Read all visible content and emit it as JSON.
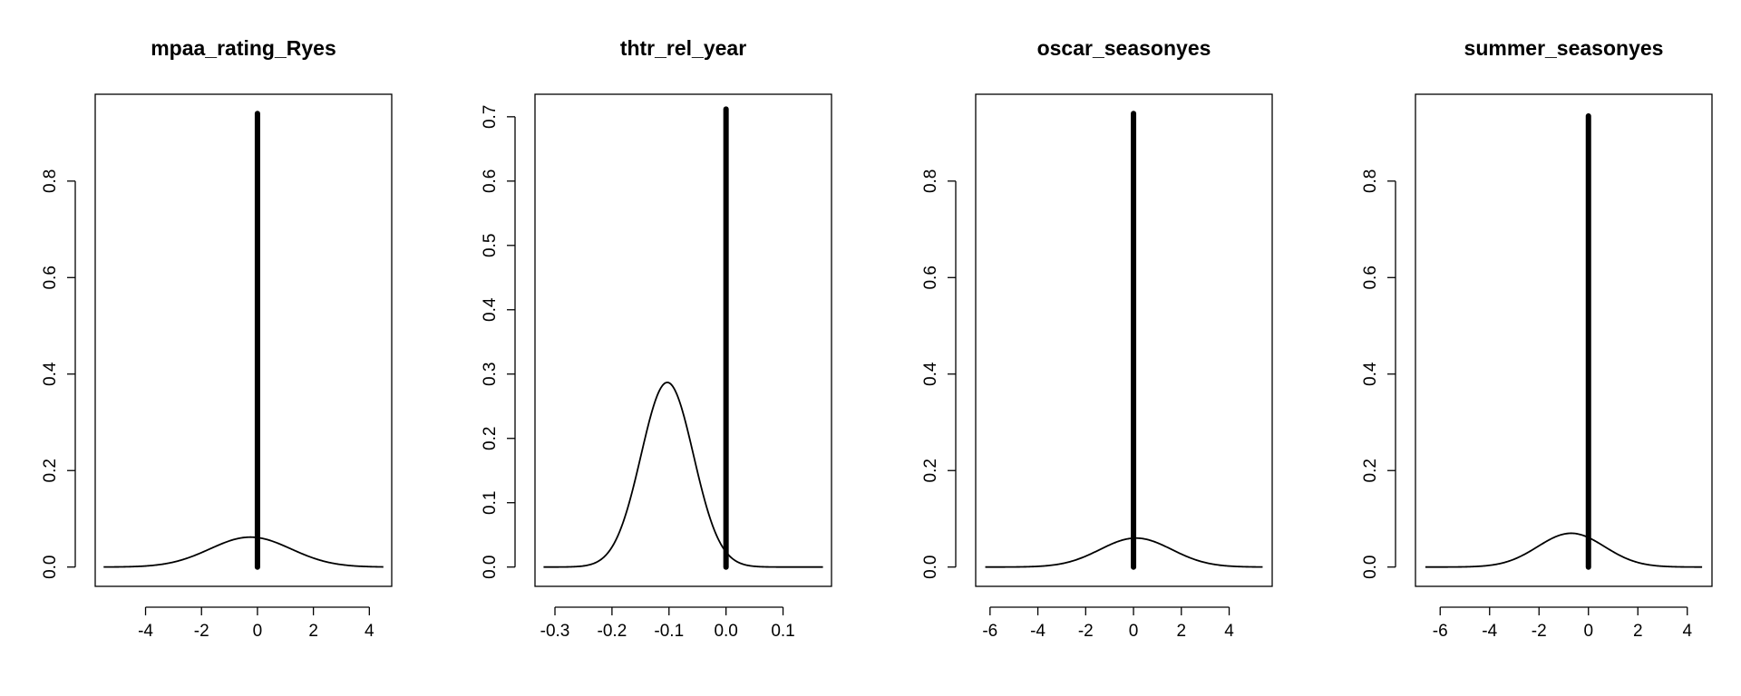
{
  "chart_data": [
    {
      "type": "line",
      "title": "mpaa_rating_Ryes",
      "xlabel": "",
      "ylabel": "",
      "xlim": [
        -5.8,
        4.8
      ],
      "ylim": [
        -0.04,
        0.98
      ],
      "x_ticks": [
        -4,
        -2,
        0,
        2,
        4
      ],
      "y_ticks": [
        0.0,
        0.2,
        0.4,
        0.6,
        0.8
      ],
      "x_tick_labels": [
        "-4",
        "-2",
        "0",
        "2",
        "4"
      ],
      "y_tick_labels": [
        "0.0",
        "0.2",
        "0.4",
        "0.6",
        "0.8"
      ],
      "density": {
        "mean": -0.25,
        "sd": 1.45,
        "peak": 0.062,
        "x_range": [
          -5.5,
          4.5
        ]
      },
      "spike": {
        "x": 0.0,
        "height": 0.94
      }
    },
    {
      "type": "line",
      "title": "thtr_rel_year",
      "xlabel": "",
      "ylabel": "",
      "xlim": [
        -0.335,
        0.185
      ],
      "ylim": [
        -0.03,
        0.735
      ],
      "x_ticks": [
        -0.3,
        -0.2,
        -0.1,
        0.0,
        0.1
      ],
      "y_ticks": [
        0.0,
        0.1,
        0.2,
        0.3,
        0.4,
        0.5,
        0.6,
        0.7
      ],
      "x_tick_labels": [
        "-0.3",
        "-0.2",
        "-0.1",
        "0.0",
        "0.1"
      ],
      "y_tick_labels": [
        "0.0",
        "0.1",
        "0.2",
        "0.3",
        "0.4",
        "0.5",
        "0.6",
        "0.7"
      ],
      "density": {
        "mean": -0.103,
        "sd": 0.046,
        "peak": 0.287,
        "x_range": [
          -0.32,
          0.17
        ]
      },
      "spike": {
        "x": 0.0,
        "height": 0.712
      }
    },
    {
      "type": "line",
      "title": "oscar_seasonyes",
      "xlabel": "",
      "ylabel": "",
      "xlim": [
        -6.6,
        5.8
      ],
      "ylim": [
        -0.04,
        0.98
      ],
      "x_ticks": [
        -6,
        -4,
        -2,
        0,
        2,
        4
      ],
      "y_ticks": [
        0.0,
        0.2,
        0.4,
        0.6,
        0.8
      ],
      "x_tick_labels": [
        "-6",
        "-4",
        "-2",
        "0",
        "2",
        "4"
      ],
      "y_tick_labels": [
        "0.0",
        "0.2",
        "0.4",
        "0.6",
        "0.8"
      ],
      "density": {
        "mean": 0.1,
        "sd": 1.5,
        "peak": 0.06,
        "x_range": [
          -6.2,
          5.4
        ]
      },
      "spike": {
        "x": 0.0,
        "height": 0.94
      }
    },
    {
      "type": "line",
      "title": "summer_seasonyes",
      "xlabel": "",
      "ylabel": "",
      "xlim": [
        -7.0,
        5.0
      ],
      "ylim": [
        -0.04,
        0.98
      ],
      "x_ticks": [
        -6,
        -4,
        -2,
        0,
        2,
        4
      ],
      "y_ticks": [
        0.0,
        0.2,
        0.4,
        0.6,
        0.8
      ],
      "x_tick_labels": [
        "-6",
        "-4",
        "-2",
        "0",
        "2",
        "4"
      ],
      "y_tick_labels": [
        "0.0",
        "0.2",
        "0.4",
        "0.6",
        "0.8"
      ],
      "density": {
        "mean": -0.7,
        "sd": 1.35,
        "peak": 0.07,
        "x_range": [
          -6.6,
          4.6
        ]
      },
      "spike": {
        "x": 0.0,
        "height": 0.935
      }
    }
  ]
}
